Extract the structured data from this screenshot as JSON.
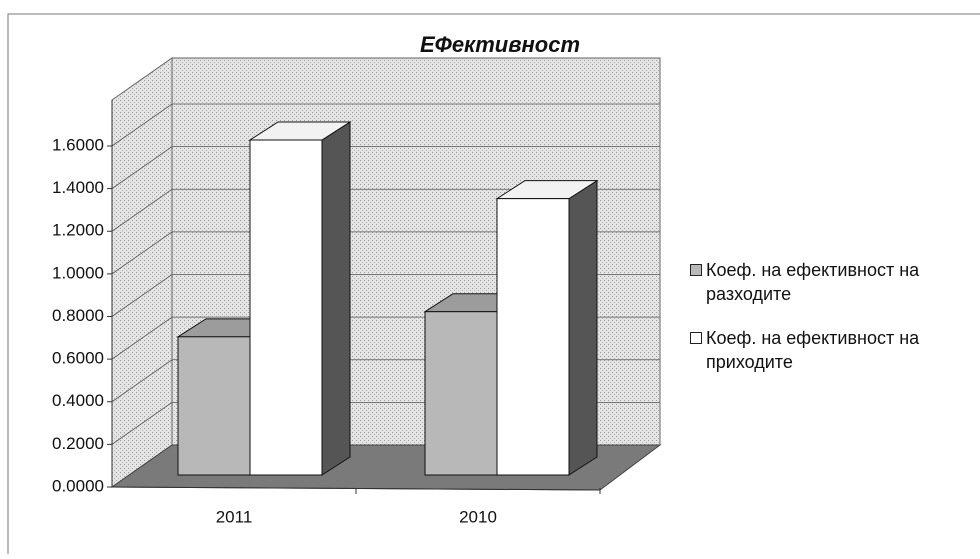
{
  "chart_data": {
    "type": "bar3d",
    "title": "ЕФективност",
    "categories": [
      "2011",
      "2010"
    ],
    "series": [
      {
        "name": "Коеф. на ефективност на разходите",
        "color": "#b8b8b8",
        "values": [
          0.66,
          0.78
        ]
      },
      {
        "name": "Коеф. на ефективност на приходите",
        "color": "#ffffff",
        "values": [
          1.6,
          1.32
        ]
      }
    ],
    "ylim": [
      0,
      1.6
    ],
    "yticks": [
      {
        "value": 0,
        "label": "0.0000"
      },
      {
        "value": 0.2,
        "label": "0.2000"
      },
      {
        "value": 0.4,
        "label": "0.4000"
      },
      {
        "value": 0.6,
        "label": "0.6000"
      },
      {
        "value": 0.8,
        "label": "0.8000"
      },
      {
        "value": 1.0,
        "label": "1.0000"
      },
      {
        "value": 1.2,
        "label": "1.2000"
      },
      {
        "value": 1.4,
        "label": "1.4000"
      },
      {
        "value": 1.6,
        "label": "1.6000"
      }
    ],
    "grid": true,
    "legend": "right"
  }
}
